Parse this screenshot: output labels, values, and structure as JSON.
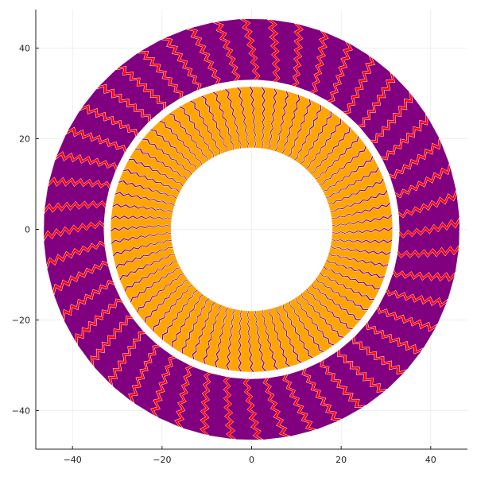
{
  "chart_data": {
    "type": "scatter",
    "title": "",
    "xlabel": "",
    "ylabel": "",
    "xlim": [
      -48.2,
      48.2
    ],
    "ylim": [
      -48.5,
      48.5
    ],
    "xticks": [
      -40,
      -20,
      0,
      20,
      40
    ],
    "yticks": [
      -40,
      -20,
      0,
      20,
      40
    ],
    "xtick_labels": [
      "−40",
      "−20",
      "0",
      "20",
      "40"
    ],
    "ytick_labels": [
      "−40",
      "−20",
      "0",
      "20",
      "40"
    ],
    "grid": true,
    "legend": "none",
    "series": [
      {
        "color": "#0000ff",
        "ring": "outer",
        "radius_range": [
          33,
          46.5
        ],
        "petal_count": 48,
        "zigzag_teeth_per_petal": 7,
        "angle_offset_deg": 0
      },
      {
        "color": "#ff0000",
        "ring": "outer",
        "radius_range": [
          33,
          46.5
        ],
        "petal_count": 48,
        "zigzag_teeth_per_petal": 7,
        "angle_offset_deg": -1.6
      },
      {
        "color": "#800080",
        "ring": "outer",
        "radius_range": [
          33,
          46.5
        ],
        "petal_count": 48,
        "zigzag_teeth_per_petal": 7,
        "angle_offset_deg": 1.6
      },
      {
        "color": "#800080",
        "ring": "inner",
        "radius_range": [
          18,
          31.5
        ],
        "petal_count": 72,
        "zigzag_teeth_per_petal": 7,
        "angle_offset_deg": -1.2
      },
      {
        "color": "#ffa500",
        "ring": "inner",
        "radius_range": [
          18,
          31.5
        ],
        "petal_count": 72,
        "zigzag_teeth_per_petal": 7,
        "angle_offset_deg": 0
      }
    ]
  }
}
